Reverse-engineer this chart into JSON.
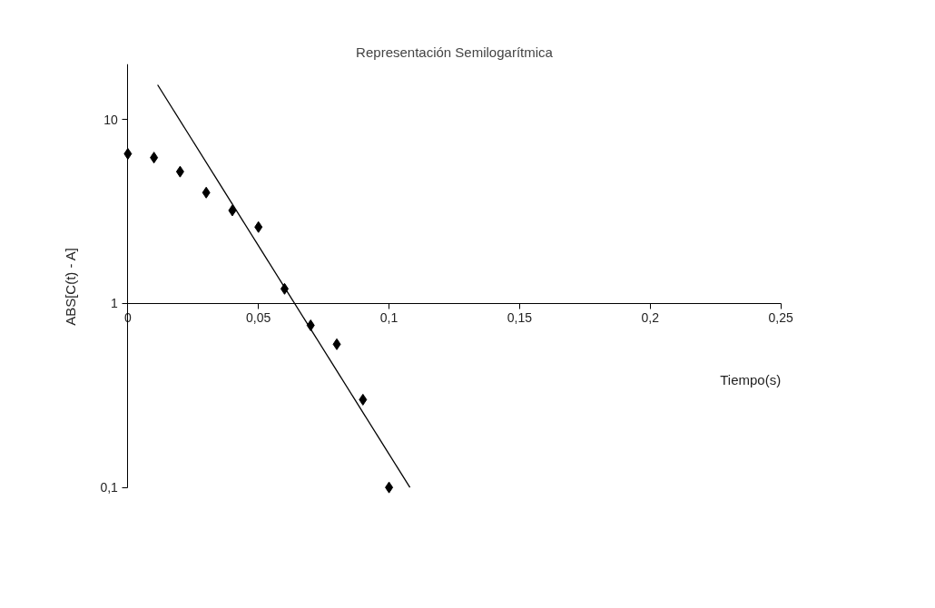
{
  "chart_data": {
    "type": "scatter",
    "title": "Representación Semilogarítmica",
    "xlabel": "Tiempo(s)",
    "ylabel": "ABS[C(t) - A]",
    "log": "y",
    "marker": "diamond",
    "xlim": [
      0,
      0.25
    ],
    "ylim": [
      0.1,
      20
    ],
    "xticks": [
      0,
      {
        "value": 0.05,
        "label": "0,05"
      },
      {
        "value": 0.1,
        "label": "0,1"
      },
      {
        "value": 0.15,
        "label": "0,15"
      },
      {
        "value": 0.2,
        "label": "0,2"
      },
      {
        "value": 0.25,
        "label": "0,25"
      }
    ],
    "yticks": [
      {
        "value": 0.1,
        "label": "0,1"
      },
      1,
      10
    ],
    "x": [
      0,
      0.01,
      0.02,
      0.03,
      0.04,
      0.05,
      0.06,
      0.07,
      0.08,
      0.09,
      0.1
    ],
    "series": [
      {
        "color": "#000000",
        "values": [
          6.5,
          6.2,
          5.2,
          4.0,
          3.2,
          2.6,
          1.2,
          0.76,
          0.6,
          0.3,
          0.1
        ]
      },
      {
        "type": "line",
        "marker": "none",
        "color": "#000000",
        "x": [
          0.0114,
          0.108
        ],
        "values": [
          15.4,
          0.1
        ]
      }
    ]
  }
}
